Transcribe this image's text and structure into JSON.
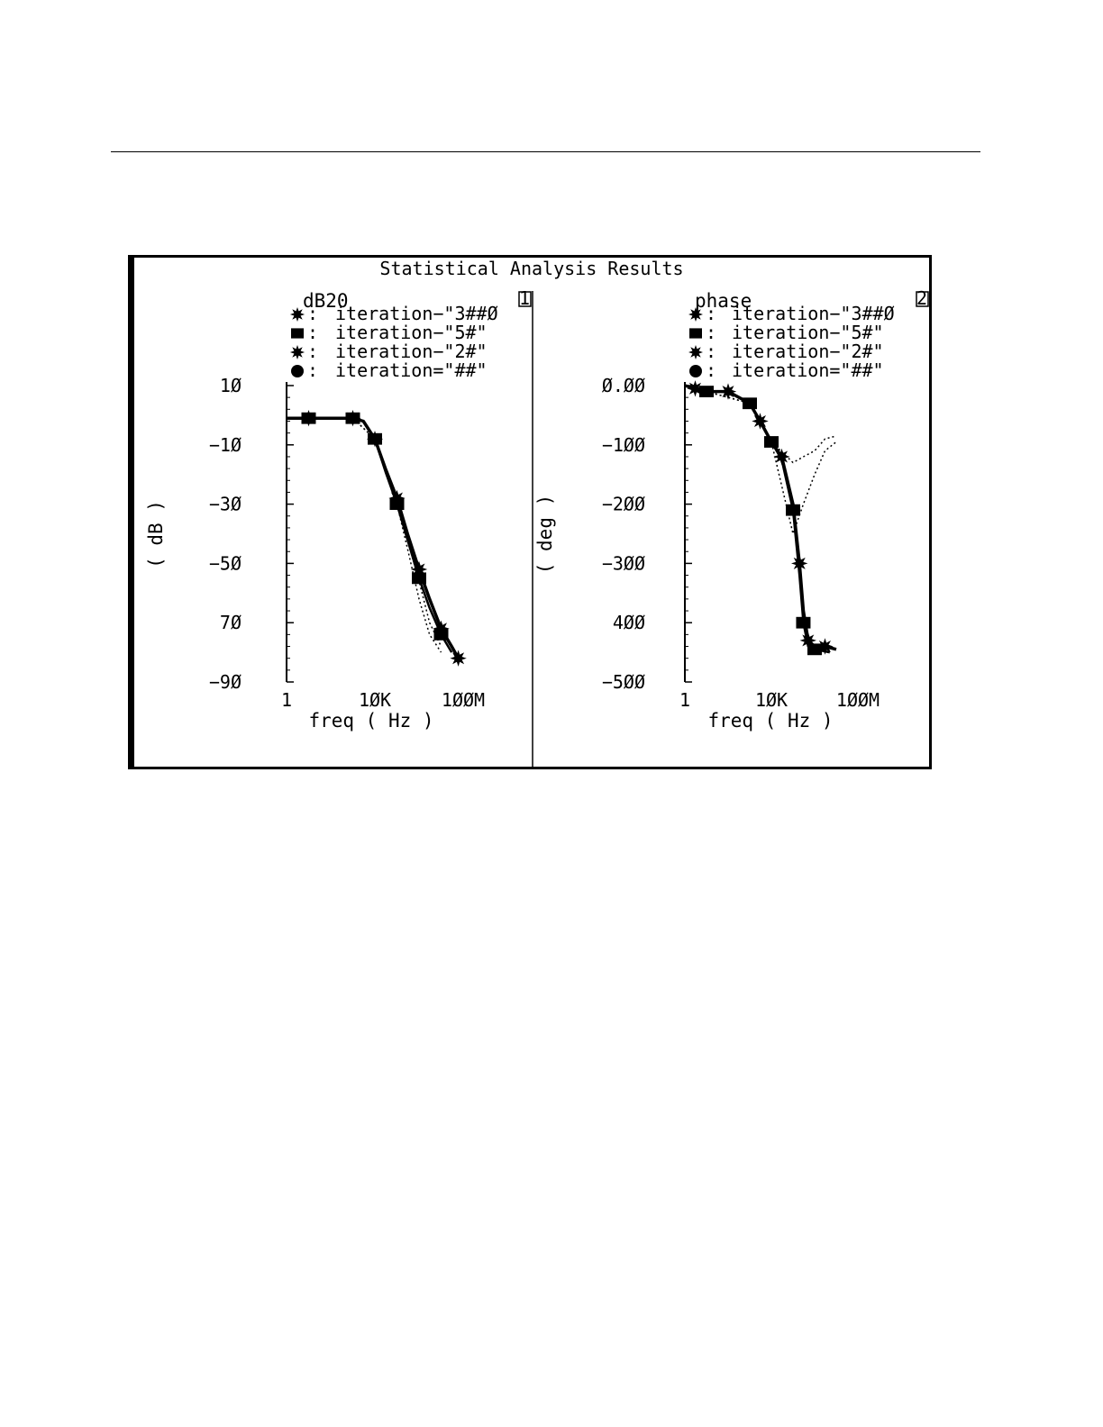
{
  "page": {
    "title": "Statistical Analysis Results"
  },
  "chart_data": [
    {
      "type": "line",
      "title": "dB20",
      "panel_number": "1",
      "xlabel": "freq ( Hz )",
      "ylabel": "( dB )",
      "x_scale": "log",
      "xlim": [
        1,
        100000000
      ],
      "ylim": [
        -90,
        10
      ],
      "x_ticks": [
        {
          "value": 1,
          "label": "1"
        },
        {
          "value": 10000,
          "label": "1ØK"
        },
        {
          "value": 100000000,
          "label": "1ØØM"
        }
      ],
      "y_ticks": [
        {
          "value": 10,
          "label": "1Ø"
        },
        {
          "value": -10,
          "label": "−1Ø"
        },
        {
          "value": -30,
          "label": "−3Ø"
        },
        {
          "value": -50,
          "label": "−5Ø"
        },
        {
          "value": -70,
          "label": "7Ø"
        },
        {
          "value": -90,
          "label": "−9Ø"
        }
      ],
      "legend_position": "top",
      "series": [
        {
          "name": "iteration−\"3##Ø",
          "style": "solid",
          "x": [
            1,
            10,
            100,
            1000,
            3000,
            10000,
            30000,
            100000,
            300000,
            1000000,
            3000000,
            10000000,
            30000000,
            60000000
          ],
          "y": [
            -1,
            -1,
            -1,
            -1,
            -2,
            -8,
            -18,
            -28,
            -40,
            -52,
            -62,
            -72,
            -78,
            -82
          ]
        },
        {
          "name": "iteration−\"5#\"",
          "style": "solid",
          "x": [
            1,
            10,
            100,
            1000,
            3000,
            10000,
            30000,
            100000,
            300000,
            1000000,
            3000000,
            10000000,
            30000000
          ],
          "y": [
            -1,
            -1,
            -1,
            -1,
            -2,
            -8,
            -19,
            -30,
            -42,
            -55,
            -65,
            -74,
            -80
          ]
        },
        {
          "name": "iteration−\"2#\"",
          "style": "dotted",
          "x": [
            1,
            1000,
            10000,
            100000,
            300000,
            1000000,
            3000000,
            10000000
          ],
          "y": [
            -1,
            -1,
            -8,
            -30,
            -45,
            -62,
            -74,
            -80
          ]
        },
        {
          "name": "iteration=\"##\"",
          "style": "dotted",
          "x": [
            1,
            1000,
            10000,
            100000,
            300000,
            1000000,
            3000000,
            10000000
          ],
          "y": [
            -1,
            -1,
            -8,
            -29,
            -42,
            -56,
            -70,
            -78
          ]
        }
      ]
    },
    {
      "type": "line",
      "title": "phase",
      "panel_number": "2",
      "xlabel": "freq ( Hz )",
      "ylabel": "( deg )",
      "x_scale": "log",
      "xlim": [
        1,
        100000000
      ],
      "ylim": [
        -500,
        0
      ],
      "x_ticks": [
        {
          "value": 1,
          "label": "1"
        },
        {
          "value": 10000,
          "label": "1ØK"
        },
        {
          "value": 100000000,
          "label": "1ØØM"
        }
      ],
      "y_ticks": [
        {
          "value": 0,
          "label": "Ø.ØØ"
        },
        {
          "value": -100,
          "label": "−1ØØ"
        },
        {
          "value": -200,
          "label": "−2ØØ"
        },
        {
          "value": -300,
          "label": "−3ØØ"
        },
        {
          "value": -400,
          "label": "4ØØ"
        },
        {
          "value": -500,
          "label": "−5ØØ"
        }
      ],
      "legend_position": "top",
      "series": [
        {
          "name": "iteration−\"3##Ø",
          "style": "solid",
          "x": [
            1,
            3,
            10,
            100,
            1000,
            3000,
            10000,
            30000,
            100000,
            200000,
            300000,
            500000,
            1000000,
            3000000,
            10000000
          ],
          "y": [
            0,
            -5,
            -10,
            -10,
            -30,
            -60,
            -95,
            -120,
            -200,
            -300,
            -380,
            -430,
            -440,
            -440,
            -445
          ]
        },
        {
          "name": "iteration−\"5#\"",
          "style": "solid",
          "x": [
            1,
            10,
            100,
            1000,
            3000,
            10000,
            30000,
            100000,
            200000,
            300000,
            500000,
            1000000,
            5000000
          ],
          "y": [
            0,
            -10,
            -10,
            -30,
            -60,
            -95,
            -125,
            -210,
            -320,
            -400,
            -440,
            -445,
            -450
          ]
        },
        {
          "name": "iteration−\"2#\"",
          "style": "dotted",
          "x": [
            1,
            1000,
            10000,
            100000,
            300000,
            1000000,
            3000000,
            10000000
          ],
          "y": [
            0,
            -30,
            -95,
            -130,
            -120,
            -110,
            -90,
            -85
          ]
        },
        {
          "name": "iteration=\"##\"",
          "style": "dotted",
          "x": [
            1,
            1000,
            10000,
            100000,
            300000,
            1000000,
            3000000,
            10000000
          ],
          "y": [
            0,
            -30,
            -95,
            -250,
            -200,
            -150,
            -110,
            -95
          ]
        }
      ]
    }
  ]
}
